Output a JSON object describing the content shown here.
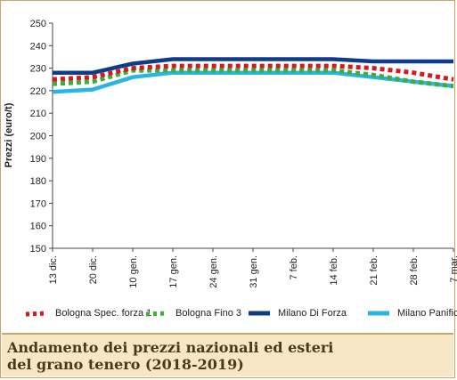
{
  "chart_data": {
    "type": "line",
    "title": "",
    "xlabel": "",
    "ylabel": "Prezzi (euro/t)",
    "ylim": [
      150,
      250
    ],
    "yticks": [
      150,
      160,
      170,
      180,
      190,
      200,
      210,
      220,
      230,
      240,
      250
    ],
    "categories": [
      "13 dic.",
      "20 dic.",
      "10 gen.",
      "17 gen.",
      "24 gen.",
      "31 gen.",
      "7 feb.",
      "14 feb.",
      "21 feb.",
      "28 feb.",
      "7 mar."
    ],
    "grid": false,
    "legend_position": "bottom",
    "series": [
      {
        "name": "Bologna Spec. forza 1",
        "color": "#d7191c",
        "style": "dotted",
        "values": [
          225,
          226,
          230,
          231,
          231,
          231,
          231,
          231,
          230,
          228,
          225
        ]
      },
      {
        "name": "Bologna Fino 3",
        "color": "#3cae3c",
        "style": "dotted",
        "values": [
          223,
          224,
          229,
          229,
          229,
          229,
          229,
          229,
          227,
          224,
          222
        ]
      },
      {
        "name": "Milano Di Forza",
        "color": "#0d3c8c",
        "style": "solid",
        "values": [
          228,
          228,
          232,
          234,
          234,
          234,
          234,
          234,
          233,
          233,
          233
        ]
      },
      {
        "name": "Milano Panificabile",
        "color": "#2ab4e6",
        "style": "solid",
        "values": [
          219.5,
          220.5,
          226,
          228,
          228,
          228,
          228,
          228,
          226,
          224,
          222
        ]
      }
    ]
  },
  "caption": {
    "line1": "Andamento dei prezzi nazionali ed esteri",
    "line2": "del grano tenero (2018-2019)"
  }
}
